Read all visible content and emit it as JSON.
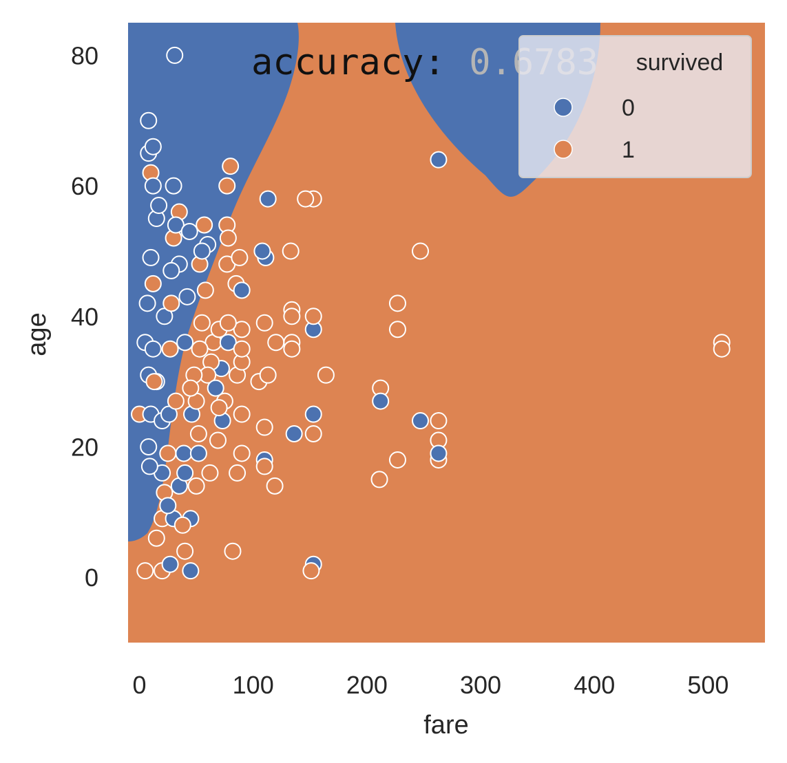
{
  "chart_data": {
    "type": "scatter",
    "title_prefix": "accuracy:",
    "title_value": "0.6783",
    "xlabel": "fare",
    "ylabel": "age",
    "xlim": [
      -10,
      550
    ],
    "ylim": [
      -10,
      85
    ],
    "xticks": [
      0,
      100,
      200,
      300,
      400,
      500
    ],
    "yticks": [
      0,
      20,
      40,
      60,
      80
    ],
    "grid": false,
    "legend": {
      "title": "survived",
      "placement": "top-right",
      "labels": [
        "0",
        "1"
      ]
    },
    "colors": {
      "class_0": "#4c72b0",
      "class_1": "#dd8452",
      "marker_edge": "#ffffff"
    },
    "decision_regions": {
      "class_1_background": true,
      "class_0_regions": [
        "left band: fare below about 140 at age 80, narrowing to fare below about 0 at age 6",
        "ellipse centered near fare 330 at top edge, spanning fare about 235 to 420, bottom near age 59"
      ]
    },
    "series": [
      {
        "name": "0",
        "points": [
          [
            31,
            80
          ],
          [
            263,
            64
          ],
          [
            113,
            58
          ],
          [
            108,
            50
          ],
          [
            111,
            49
          ],
          [
            90,
            44
          ],
          [
            153,
            38
          ],
          [
            78,
            36
          ],
          [
            212,
            27
          ],
          [
            247,
            24
          ],
          [
            153,
            25
          ],
          [
            136,
            22
          ],
          [
            263,
            19
          ],
          [
            110,
            18
          ],
          [
            153,
            2
          ],
          [
            45,
            1
          ],
          [
            8,
            70
          ],
          [
            8,
            65
          ],
          [
            12,
            60
          ],
          [
            15,
            55
          ],
          [
            10,
            49
          ],
          [
            7,
            42
          ],
          [
            12,
            35
          ],
          [
            8,
            31
          ],
          [
            10,
            25
          ],
          [
            8,
            20
          ],
          [
            9,
            17
          ],
          [
            20,
            16
          ],
          [
            25,
            11
          ],
          [
            30,
            9
          ],
          [
            35,
            14
          ],
          [
            40,
            16
          ],
          [
            28,
            47
          ],
          [
            35,
            48
          ],
          [
            42,
            43
          ],
          [
            40,
            36
          ],
          [
            55,
            50
          ],
          [
            60,
            51
          ],
          [
            67,
            29
          ],
          [
            73,
            24
          ],
          [
            45,
            9
          ],
          [
            30,
            60
          ],
          [
            17,
            57
          ],
          [
            20,
            24
          ],
          [
            26,
            25
          ],
          [
            39,
            19
          ],
          [
            52,
            19
          ],
          [
            72,
            32
          ],
          [
            5,
            36
          ],
          [
            12,
            66
          ],
          [
            32,
            54
          ],
          [
            46,
            25
          ],
          [
            15,
            30
          ],
          [
            22,
            40
          ],
          [
            44,
            53
          ],
          [
            27,
            2
          ]
        ]
      },
      {
        "name": "1",
        "points": [
          [
            512,
            36
          ],
          [
            512,
            35
          ],
          [
            263,
            24
          ],
          [
            263,
            21
          ],
          [
            263,
            18
          ],
          [
            247,
            50
          ],
          [
            227,
            42
          ],
          [
            227,
            38
          ],
          [
            212,
            29
          ],
          [
            211,
            15
          ],
          [
            227,
            18
          ],
          [
            164,
            31
          ],
          [
            153,
            58
          ],
          [
            146,
            58
          ],
          [
            153,
            40
          ],
          [
            153,
            22
          ],
          [
            151,
            1
          ],
          [
            134,
            40
          ],
          [
            134,
            41
          ],
          [
            134,
            36
          ],
          [
            134,
            35
          ],
          [
            133,
            50
          ],
          [
            120,
            36
          ],
          [
            119,
            14
          ],
          [
            113,
            31
          ],
          [
            110,
            39
          ],
          [
            110,
            23
          ],
          [
            110,
            17
          ],
          [
            105,
            30
          ],
          [
            90,
            38
          ],
          [
            90,
            35
          ],
          [
            90,
            33
          ],
          [
            88,
            49
          ],
          [
            90,
            25
          ],
          [
            90,
            19
          ],
          [
            86,
            16
          ],
          [
            82,
            4
          ],
          [
            80,
            63
          ],
          [
            77,
            60
          ],
          [
            78,
            52
          ],
          [
            77,
            54
          ],
          [
            77,
            48
          ],
          [
            78,
            39
          ],
          [
            75,
            27
          ],
          [
            70,
            26
          ],
          [
            65,
            36
          ],
          [
            60,
            31
          ],
          [
            57,
            54
          ],
          [
            55,
            39
          ],
          [
            53,
            48
          ],
          [
            53,
            35
          ],
          [
            52,
            22
          ],
          [
            50,
            27
          ],
          [
            50,
            14
          ],
          [
            40,
            4
          ],
          [
            35,
            56
          ],
          [
            30,
            52
          ],
          [
            28,
            42
          ],
          [
            27,
            35
          ],
          [
            25,
            19
          ],
          [
            22,
            13
          ],
          [
            20,
            9
          ],
          [
            15,
            6
          ],
          [
            13,
            30
          ],
          [
            12,
            45
          ],
          [
            10,
            62
          ],
          [
            0,
            25
          ],
          [
            5,
            1
          ],
          [
            20,
            1
          ],
          [
            32,
            27
          ],
          [
            38,
            8
          ],
          [
            62,
            16
          ],
          [
            69,
            21
          ],
          [
            48,
            31
          ],
          [
            86,
            31
          ],
          [
            85,
            45
          ],
          [
            70,
            38
          ],
          [
            63,
            33
          ],
          [
            58,
            44
          ],
          [
            45,
            29
          ]
        ]
      }
    ]
  }
}
